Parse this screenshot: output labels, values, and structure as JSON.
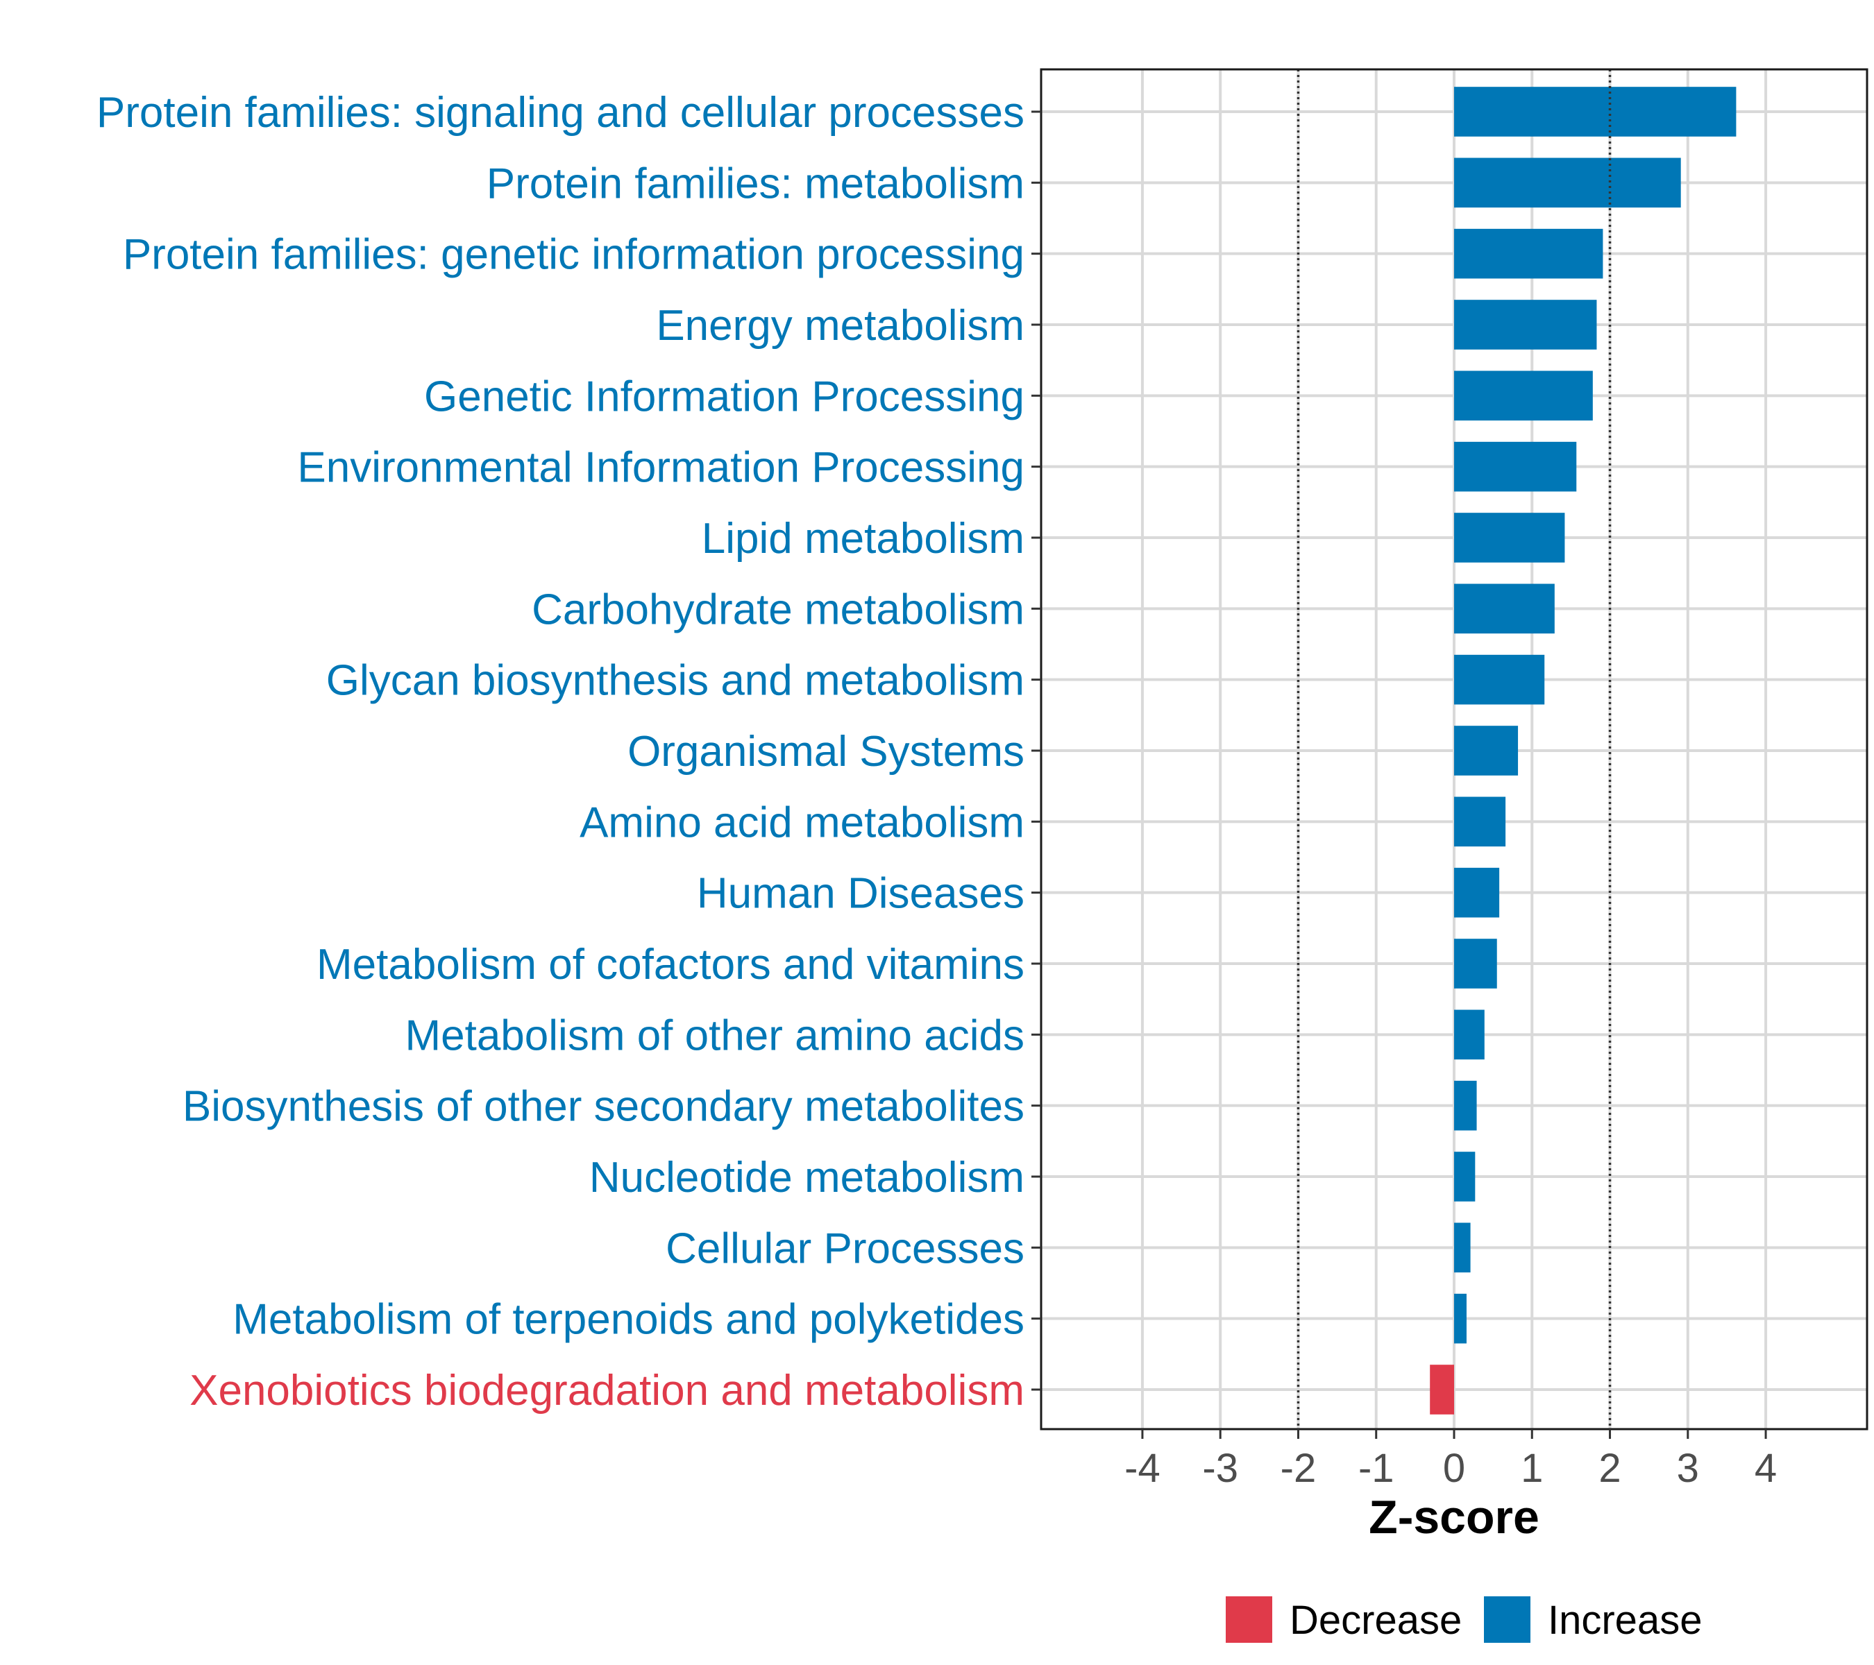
{
  "chart_data": {
    "type": "bar",
    "orientation": "horizontal",
    "xlabel": "Z-score",
    "ylabel": "",
    "xlim": [
      -5.3,
      5.3
    ],
    "xticks": [
      -4,
      -3,
      -2,
      -1,
      0,
      1,
      2,
      3,
      4
    ],
    "xtick_labels": [
      "-4",
      "-3",
      "-2",
      "-1",
      "0",
      "1",
      "2",
      "3",
      "4"
    ],
    "threshold_lines": [
      -2,
      2
    ],
    "categories": [
      "Protein families: signaling and cellular processes",
      "Protein families: metabolism",
      "Protein families: genetic information processing",
      "Energy metabolism",
      "Genetic Information Processing",
      "Environmental Information Processing",
      "Lipid metabolism",
      "Carbohydrate metabolism",
      "Glycan biosynthesis and metabolism",
      "Organismal Systems",
      "Amino acid metabolism",
      "Human Diseases",
      "Metabolism of cofactors and vitamins",
      "Metabolism of other amino acids",
      "Biosynthesis of other secondary metabolites",
      "Nucleotide metabolism",
      "Cellular Processes",
      "Metabolism of terpenoids and polyketides",
      "Xenobiotics biodegradation and metabolism"
    ],
    "values": [
      3.62,
      2.91,
      1.91,
      1.83,
      1.78,
      1.57,
      1.42,
      1.29,
      1.16,
      0.82,
      0.66,
      0.58,
      0.55,
      0.39,
      0.29,
      0.27,
      0.21,
      0.16,
      -0.31
    ],
    "groups": [
      "Increase",
      "Increase",
      "Increase",
      "Increase",
      "Increase",
      "Increase",
      "Increase",
      "Increase",
      "Increase",
      "Increase",
      "Increase",
      "Increase",
      "Increase",
      "Increase",
      "Increase",
      "Increase",
      "Increase",
      "Increase",
      "Decrease"
    ],
    "legend": [
      {
        "label": "Decrease",
        "color": "#e03a4a"
      },
      {
        "label": "Increase",
        "color": "#0077b6"
      }
    ],
    "legend_position": "bottom",
    "grid": true
  }
}
